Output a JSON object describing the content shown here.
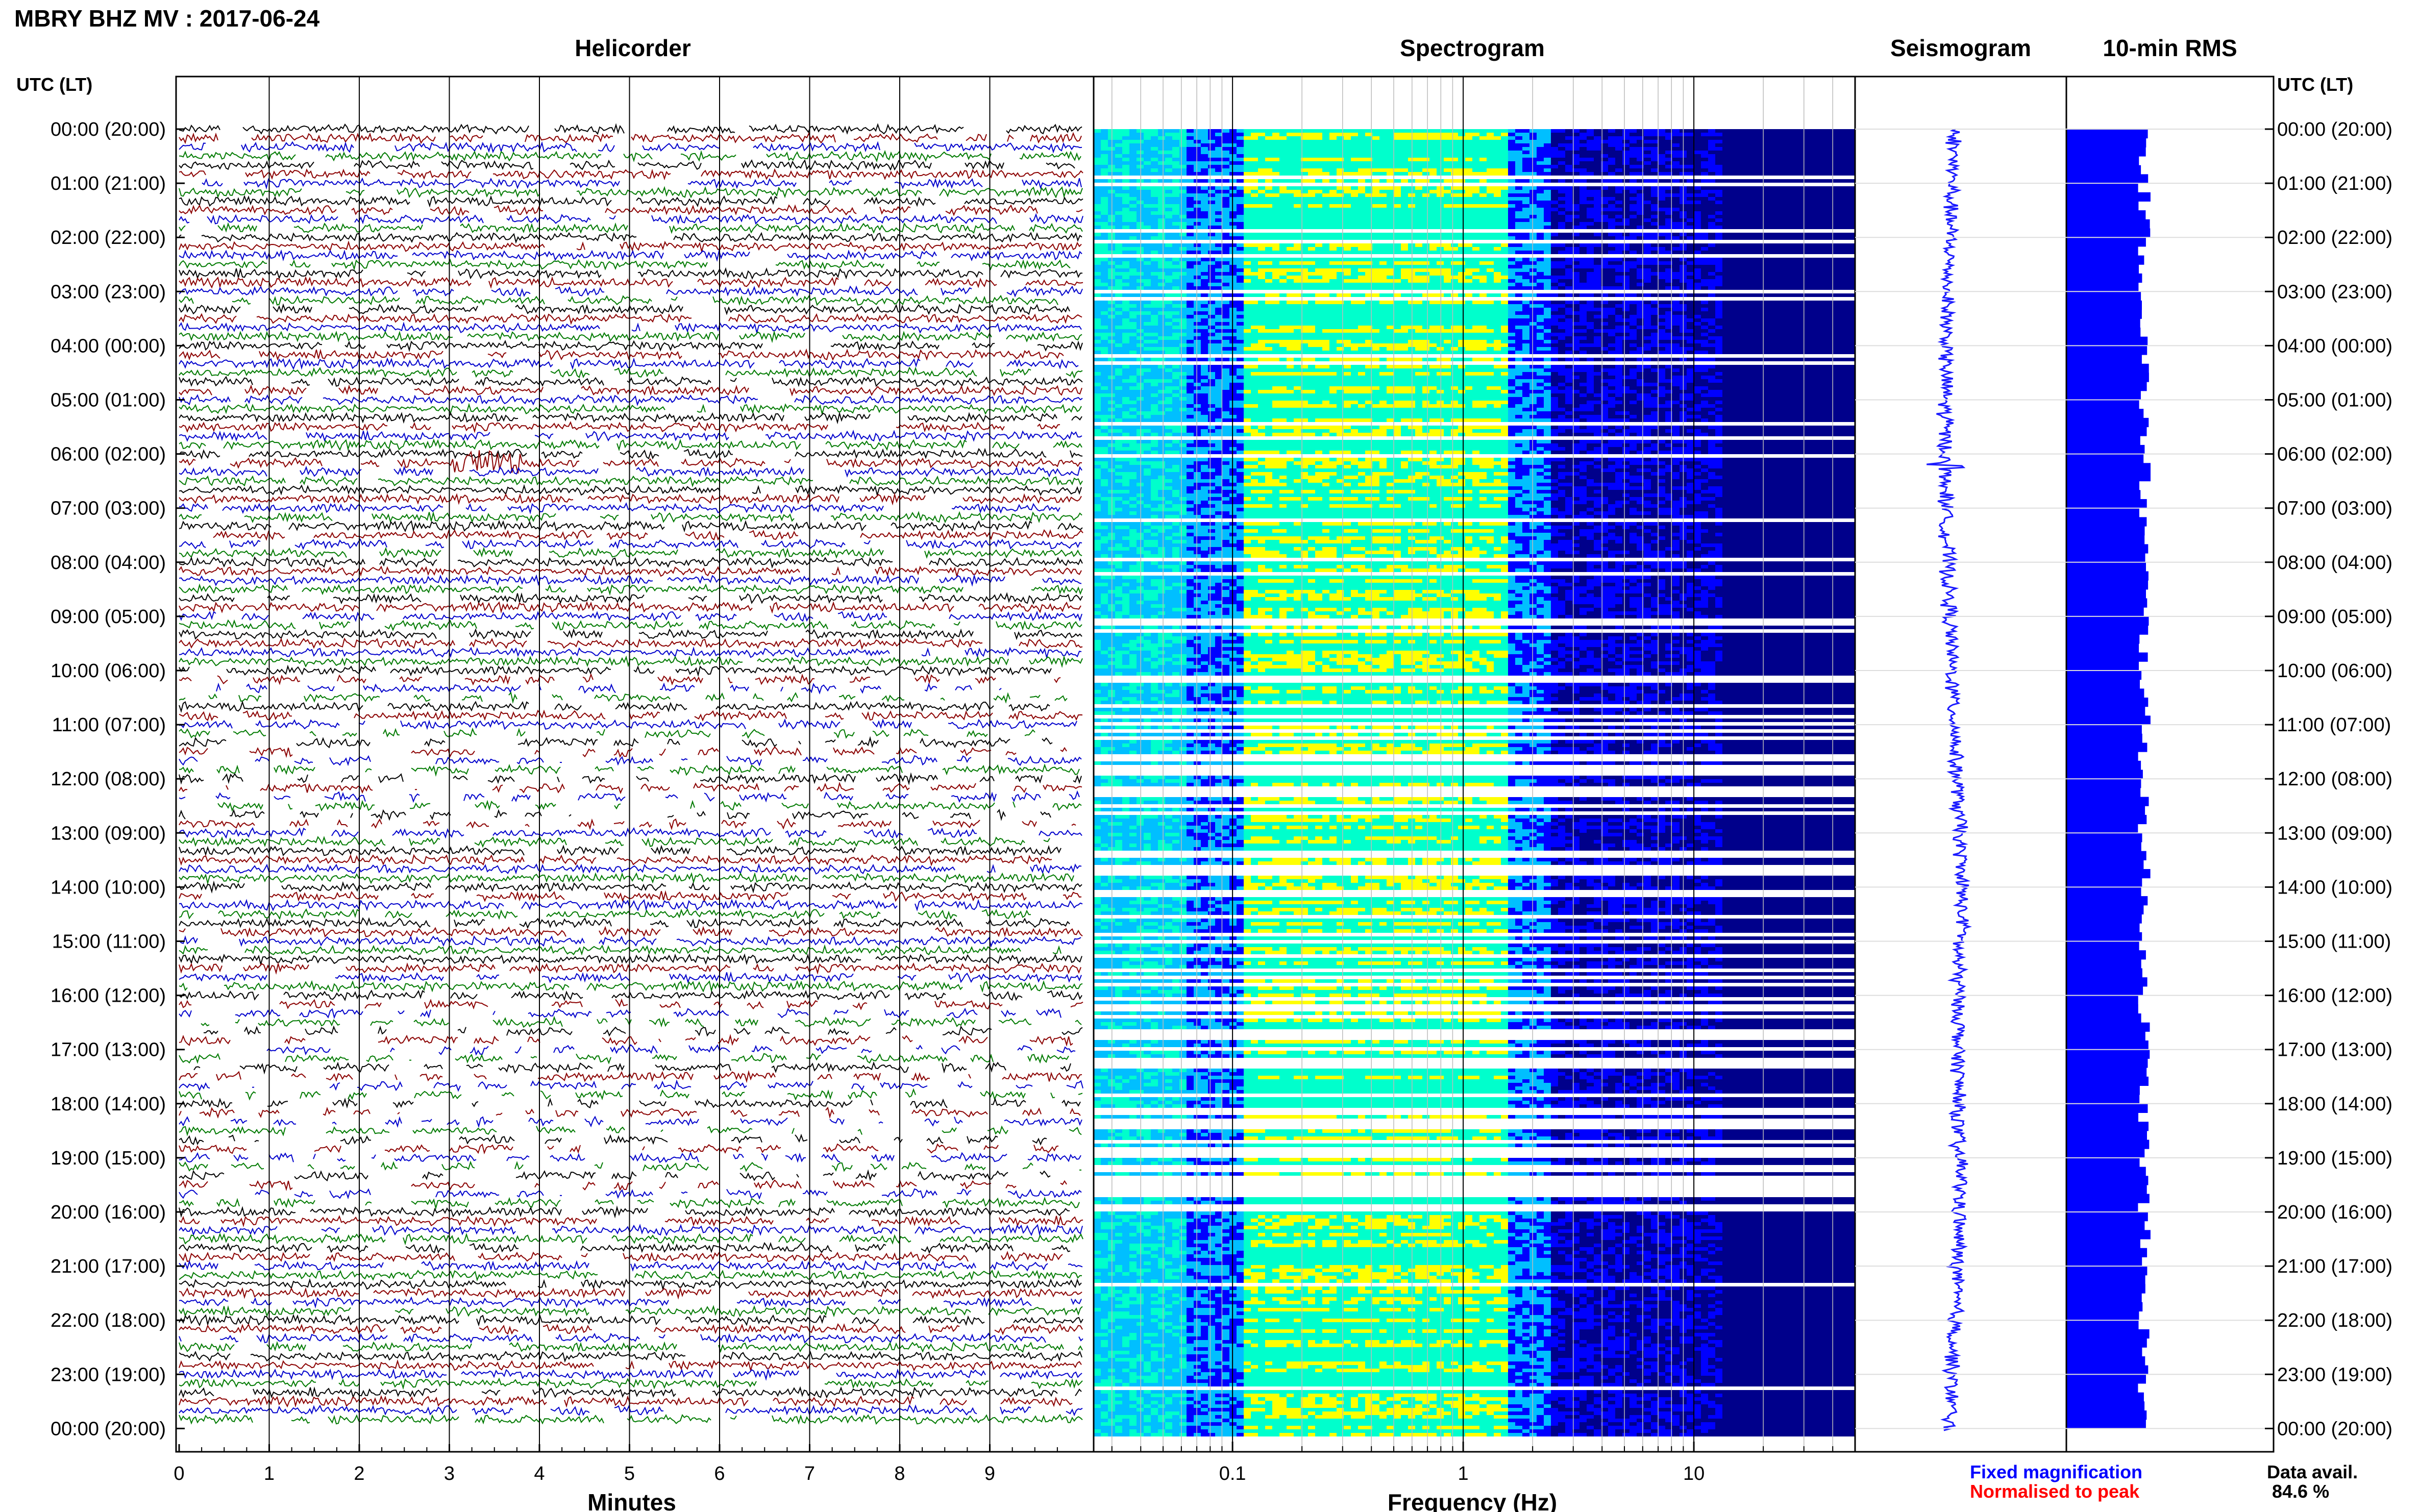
{
  "header": {
    "title": "MBRY BHZ MV : 2017-06-24",
    "utc_label_left": "UTC (LT)",
    "utc_label_right": "UTC (LT)"
  },
  "panels": {
    "helicorder": "Helicorder",
    "spectrogram": "Spectrogram",
    "seismogram": "Seismogram",
    "rms": "10-min RMS"
  },
  "footer": {
    "fixed_magnification": "Fixed magnification",
    "normalised_to_peak": "Normalised to peak",
    "data_avail_label": "Data avail.",
    "data_avail_value": "84.6 %"
  },
  "colors": {
    "helicorder_traces": [
      "#000000",
      "#8b0000",
      "#0000cc",
      "#007a00"
    ],
    "fixed_magnification": "#0000ff",
    "normalised_to_peak": "#ff0000",
    "seismogram": "#1a1aff",
    "rms": "#0000ff"
  },
  "chart_data": [
    {
      "type": "line",
      "name": "helicorder",
      "title": "Helicorder",
      "xlabel": "Minutes",
      "xticks": [
        0,
        1,
        2,
        3,
        4,
        5,
        6,
        7,
        8,
        9
      ],
      "xlim": [
        0,
        10
      ],
      "yticks": [
        "00:00 (20:00)",
        "01:00 (21:00)",
        "02:00 (22:00)",
        "03:00 (23:00)",
        "04:00 (00:00)",
        "05:00 (01:00)",
        "06:00 (02:00)",
        "07:00 (03:00)",
        "08:00 (04:00)",
        "09:00 (05:00)",
        "10:00 (06:00)",
        "11:00 (07:00)",
        "12:00 (08:00)",
        "13:00 (09:00)",
        "14:00 (10:00)",
        "15:00 (11:00)",
        "16:00 (12:00)",
        "17:00 (13:00)",
        "18:00 (14:00)",
        "19:00 (15:00)",
        "20:00 (16:00)",
        "21:00 (17:00)",
        "22:00 (18:00)",
        "23:00 (19:00)",
        "00:00 (20:00)"
      ],
      "event_hours_utc": [
        6.2
      ]
    },
    {
      "type": "heatmap",
      "name": "spectrogram",
      "title": "Spectrogram",
      "xlabel": "Frequency (Hz)",
      "xscale": "log",
      "xticks": [
        0.1,
        1,
        10
      ],
      "xlim": [
        0.025,
        50
      ],
      "colormap": [
        "#00008b",
        "#0000ff",
        "#00bfff",
        "#00ffcc",
        "#ffff00"
      ],
      "peak_frequency_hz": 0.4
    },
    {
      "type": "line",
      "name": "seismogram",
      "title": "Seismogram",
      "ylim_hours": [
        0,
        24
      ]
    },
    {
      "type": "bar",
      "name": "rms",
      "title": "10-min RMS",
      "interval_minutes": 10,
      "ylim_hours": [
        0,
        24
      ]
    }
  ]
}
